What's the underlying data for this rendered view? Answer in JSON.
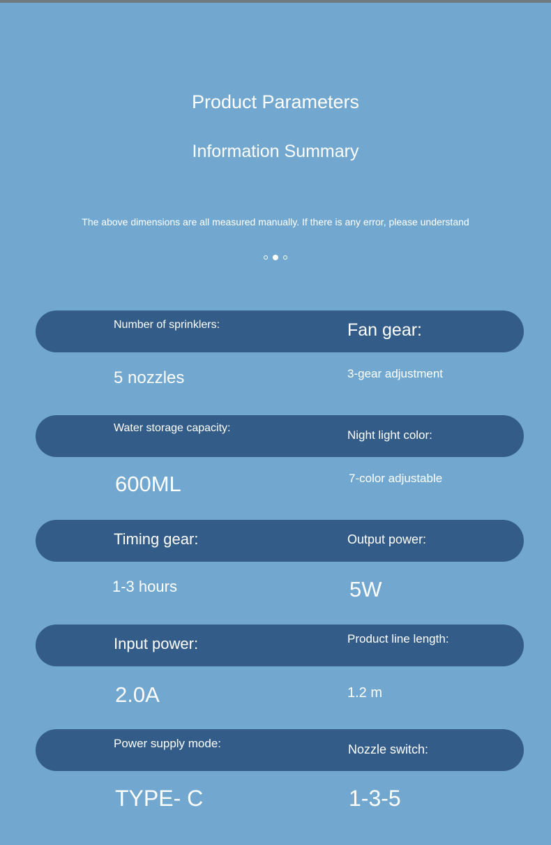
{
  "header": {
    "title": "Product Parameters",
    "subtitle": "Information Summary",
    "note": "The above dimensions are all measured manually. If there is any error, please understand",
    "carousel": {
      "count": 3,
      "active": 2
    }
  },
  "colors": {
    "background": "#72a8cf",
    "pill": "#335d88",
    "text": "#ffffff"
  },
  "params": [
    {
      "left_label": "Number of sprinklers:",
      "left_value": "5 nozzles",
      "right_label": "Fan gear:",
      "right_value": "3-gear adjustment"
    },
    {
      "left_label": "Water storage capacity:",
      "left_value": "600ML",
      "right_label": "Night light color:",
      "right_value": "7-color adjustable"
    },
    {
      "left_label": "Timing gear:",
      "left_value": "1-3 hours",
      "right_label": "Output power:",
      "right_value": "5W"
    },
    {
      "left_label": "Input power:",
      "left_value": "2.0A",
      "right_label": "Product line length:",
      "right_value": "1.2 m"
    },
    {
      "left_label": "Power supply mode:",
      "left_value": "TYPE- C",
      "right_label": "Nozzle switch:",
      "right_value": "1-3-5"
    }
  ]
}
